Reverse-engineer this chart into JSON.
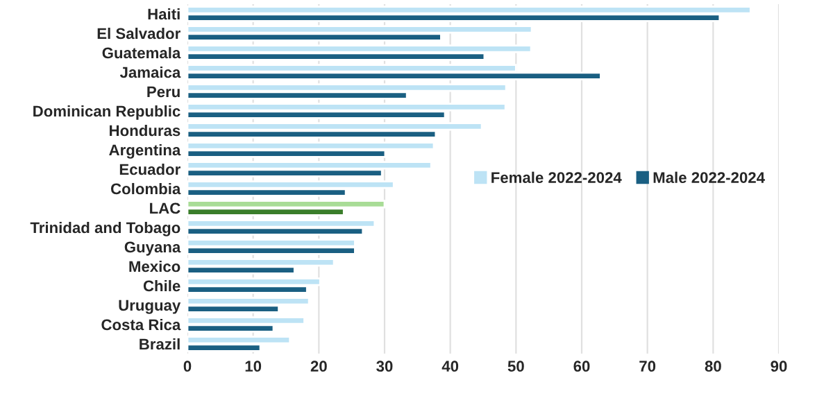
{
  "chart_data": {
    "type": "bar",
    "orientation": "horizontal",
    "categories": [
      "Haiti",
      "El Salvador",
      "Guatemala",
      "Jamaica",
      "Peru",
      "Dominican Republic",
      "Honduras",
      "Argentina",
      "Ecuador",
      "Colombia",
      "LAC",
      "Trinidad and Tobago",
      "Guyana",
      "Mexico",
      "Chile",
      "Uruguay",
      "Costa Rica",
      "Brazil"
    ],
    "series": [
      {
        "name": "Female 2022-2024",
        "color": "#bde3f5",
        "colors": [
          "#bde3f5",
          "#bde3f5",
          "#bde3f5",
          "#bde3f5",
          "#bde3f5",
          "#bde3f5",
          "#bde3f5",
          "#bde3f5",
          "#bde3f5",
          "#bde3f5",
          "#a8dc96",
          "#bde3f5",
          "#bde3f5",
          "#bde3f5",
          "#bde3f5",
          "#bde3f5",
          "#bde3f5",
          "#bde3f5"
        ],
        "values": [
          85.7,
          52.4,
          52.3,
          50.0,
          48.5,
          48.4,
          44.8,
          37.5,
          37.1,
          31.4,
          30.0,
          28.5,
          25.5,
          22.3,
          20.2,
          18.5,
          17.8,
          15.6
        ]
      },
      {
        "name": "Male 2022-2024",
        "color": "#1a5f82",
        "colors": [
          "#1a5f82",
          "#1a5f82",
          "#1a5f82",
          "#1a5f82",
          "#1a5f82",
          "#1a5f82",
          "#1a5f82",
          "#1a5f82",
          "#1a5f82",
          "#1a5f82",
          "#3a7d2a",
          "#1a5f82",
          "#1a5f82",
          "#1a5f82",
          "#1a5f82",
          "#1a5f82",
          "#1a5f82",
          "#1a5f82"
        ],
        "values": [
          81.0,
          38.6,
          45.2,
          62.9,
          33.4,
          39.2,
          37.8,
          30.1,
          29.6,
          24.1,
          23.8,
          26.7,
          25.5,
          16.3,
          18.2,
          13.9,
          13.1,
          11.1
        ]
      }
    ],
    "xlim": [
      0,
      90
    ],
    "xticks": [
      0,
      10,
      20,
      30,
      40,
      50,
      60,
      70,
      80,
      90
    ],
    "grid": "x",
    "legend": "right"
  }
}
